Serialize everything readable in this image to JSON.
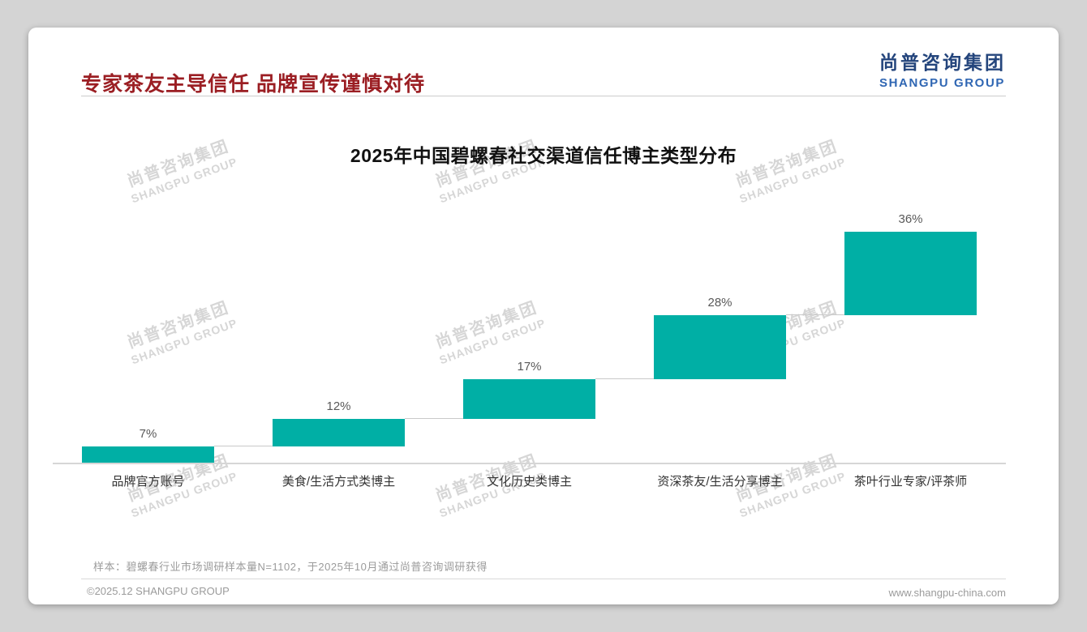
{
  "header": {
    "title": "专家茶友主导信任 品牌宣传谨慎对待"
  },
  "logo": {
    "cn": "尚普咨询集团",
    "en": "SHANGPU GROUP"
  },
  "colors": {
    "title_red": "#9B1E23",
    "logo_navy": "#24457C",
    "logo_blue": "#2F66B3",
    "bar_teal": "#00AFA5"
  },
  "chart_data": {
    "type": "bar",
    "subtype": "waterfall",
    "title": "2025年中国碧螺春社交渠道信任博主类型分布",
    "categories": [
      "品牌官方账号",
      "美食/生活方式类博主",
      "文化历史类博主",
      "资深茶友/生活分享博主",
      "茶叶行业专家/评茶师"
    ],
    "values": [
      7,
      12,
      17,
      28,
      36
    ],
    "labels": [
      "7%",
      "12%",
      "17%",
      "28%",
      "36%"
    ],
    "unit": "%",
    "ylim": [
      0,
      100
    ],
    "grid": false,
    "legend": "none",
    "bar_color": "#00AFA5"
  },
  "watermark": {
    "line1": "尚普咨询集团",
    "line2": "SHANGPU GROUP"
  },
  "note": "样本：碧螺春行业市场调研样本量N=1102，于2025年10月通过尚普咨询调研获得",
  "footer": {
    "copyright": "©2025.12 SHANGPU GROUP",
    "website": "www.shangpu-china.com"
  }
}
